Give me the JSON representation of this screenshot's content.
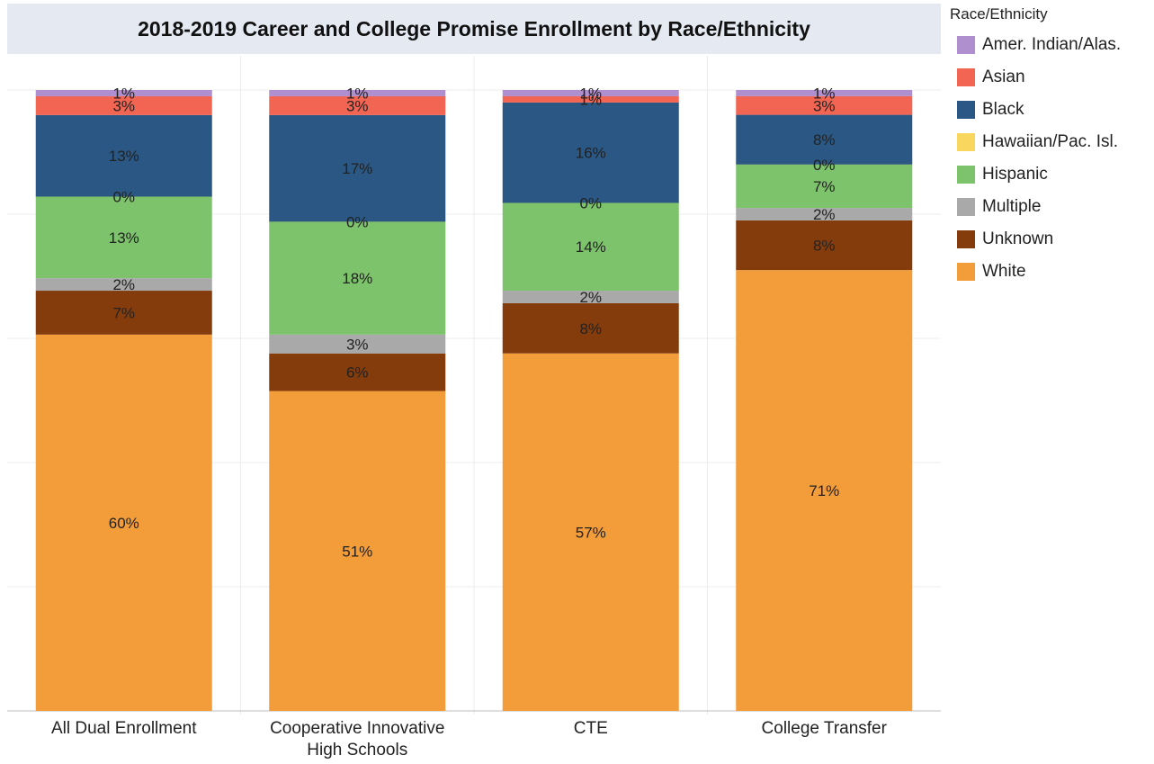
{
  "chart_data": {
    "type": "bar",
    "stacked": true,
    "title": "2018-2019 Career and College Promise Enrollment by Race/Ethnicity",
    "legend_title": "Race/Ethnicity",
    "legend_position": "right",
    "grid": true,
    "ylim": [
      0,
      100
    ],
    "categories": [
      [
        "All Dual Enrollment"
      ],
      [
        "Cooperative Innovative",
        "High Schools"
      ],
      [
        "CTE"
      ],
      [
        "College Transfer"
      ]
    ],
    "series": [
      {
        "name": "White",
        "color": "#f39c3a",
        "values": [
          60,
          51,
          57,
          71
        ]
      },
      {
        "name": "Unknown",
        "color": "#843c0c",
        "values": [
          7,
          6,
          8,
          8
        ]
      },
      {
        "name": "Multiple",
        "color": "#a9a9a9",
        "values": [
          2,
          3,
          2,
          2
        ]
      },
      {
        "name": "Hispanic",
        "color": "#7dc36b",
        "values": [
          13,
          18,
          14,
          7
        ]
      },
      {
        "name": "Hawaiian/Pac. Isl.",
        "color": "#f9d65d",
        "values": [
          0,
          0,
          0,
          0
        ]
      },
      {
        "name": "Black",
        "color": "#2a5783",
        "values": [
          13,
          17,
          16,
          8
        ]
      },
      {
        "name": "Asian",
        "color": "#f26552",
        "values": [
          3,
          3,
          1,
          3
        ]
      },
      {
        "name": "Amer. Indian/Alas.",
        "color": "#b08fcf",
        "values": [
          1,
          1,
          1,
          1
        ]
      }
    ],
    "data_labels": [
      [
        "60%",
        "51%",
        "57%",
        "71%"
      ],
      [
        "7%",
        "6%",
        "8%",
        "8%"
      ],
      [
        "2%",
        "3%",
        "2%",
        "2%"
      ],
      [
        "13%",
        "18%",
        "14%",
        "7%"
      ],
      [
        "0%",
        "0%",
        "0%",
        "0%"
      ],
      [
        "13%",
        "17%",
        "16%",
        "8%"
      ],
      [
        "3%",
        "3%",
        "1%",
        "3%"
      ],
      [
        "1%",
        "1%",
        "1%",
        "1%"
      ]
    ]
  }
}
